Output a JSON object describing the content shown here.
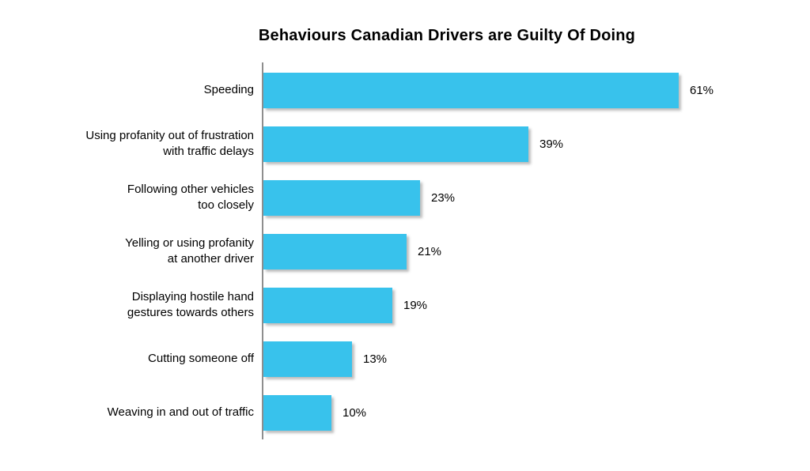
{
  "title": "Behaviours Canadian Drivers are Guilty Of Doing",
  "colors": {
    "bar": "#38C2EC",
    "axis": "#8E8E8E",
    "text": "#000000",
    "background": "#FFFFFF"
  },
  "chart_data": {
    "type": "bar",
    "orientation": "horizontal",
    "title": "Behaviours Canadian Drivers are Guilty Of Doing",
    "categories": [
      "Speeding",
      "Using profanity out of frustration with traffic delays",
      "Following other vehicles too closely",
      "Yelling or using profanity at another driver",
      "Displaying hostile hand gestures towards others",
      "Cutting someone off",
      "Weaving in and out of traffic"
    ],
    "category_lines": [
      [
        "Speeding"
      ],
      [
        "Using profanity out of frustration",
        "with traffic delays"
      ],
      [
        "Following other vehicles",
        "too closely"
      ],
      [
        "Yelling or using profanity",
        "at another driver"
      ],
      [
        "Displaying hostile hand",
        "gestures towards others"
      ],
      [
        "Cutting someone off"
      ],
      [
        "Weaving in and out of traffic"
      ]
    ],
    "values": [
      61,
      39,
      23,
      21,
      19,
      13,
      10
    ],
    "value_labels": [
      "61%",
      "39%",
      "23%",
      "21%",
      "19%",
      "13%",
      "10%"
    ],
    "xlabel": "",
    "ylabel": "",
    "xlim": [
      0,
      80
    ],
    "grid": false,
    "legend": false,
    "value_label_position": "right-of-bar"
  }
}
